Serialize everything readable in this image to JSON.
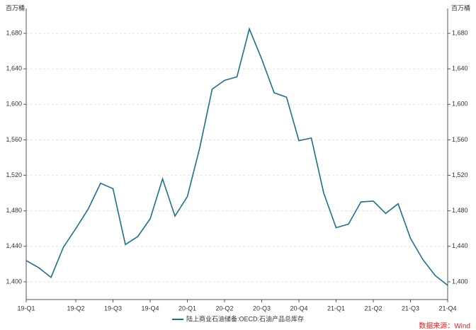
{
  "chart_data": {
    "type": "line",
    "y_unit": "百万桶",
    "source": "数据来源：Wind",
    "categories": [
      "19-Q1",
      null,
      null,
      null,
      "19-Q2",
      null,
      null,
      "19-Q3",
      null,
      null,
      "19-Q4",
      null,
      null,
      "20-Q1",
      null,
      null,
      "20-Q2",
      null,
      null,
      "20-Q3",
      null,
      null,
      "20-Q4",
      null,
      null,
      "21-Q1",
      null,
      null,
      "21-Q2",
      null,
      null,
      "21-Q3",
      null,
      null,
      "21-Q4"
    ],
    "series": [
      {
        "name": "陆上商业石油储备:OECD:石油产品总库存",
        "color": "#1f6f8b",
        "values": [
          1424,
          1416,
          1405,
          1439,
          1460,
          1482,
          1511,
          1505,
          1442,
          1451,
          1471,
          1516,
          1474,
          1496,
          1551,
          1617,
          1627,
          1631,
          1685,
          1651,
          1613,
          1608,
          1559,
          1562,
          1500,
          1461,
          1465,
          1490,
          1491,
          1477,
          1488,
          1449,
          1425,
          1407,
          1396
        ]
      }
    ],
    "ylim": [
      1380,
      1700
    ],
    "yticks": [
      {
        "value": 1400,
        "label": "1,400"
      },
      {
        "value": 1440,
        "label": "1,440"
      },
      {
        "value": 1480,
        "label": "1,480"
      },
      {
        "value": 1520,
        "label": "1,520"
      },
      {
        "value": 1560,
        "label": "1,560"
      },
      {
        "value": 1600,
        "label": "1,600"
      },
      {
        "value": 1640,
        "label": "1,640"
      },
      {
        "value": 1680,
        "label": "1,680"
      }
    ],
    "grid": true
  }
}
